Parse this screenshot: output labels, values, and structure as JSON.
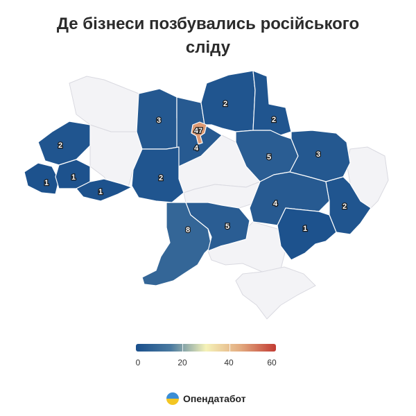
{
  "title_lines": [
    "Де бізнеси позбувались російського",
    "сліду"
  ],
  "legend": {
    "ticks": [
      "0",
      "20",
      "40",
      "60"
    ],
    "min": 0,
    "max": 60,
    "colors": [
      "#1a4f8c",
      "#4a7aa0",
      "#f5f2b8",
      "#e2a97e",
      "#c23b33"
    ]
  },
  "brand": {
    "name": "Опендатабот",
    "logo_top_color": "#3b8ed6",
    "logo_bottom_color": "#f3c623"
  },
  "colors": {
    "empty_region": "#f3f3f6",
    "label_text": "#ffffff",
    "label_outline": "#1a1a1a"
  },
  "regions": [
    {
      "id": "volyn",
      "value": 3
    },
    {
      "id": "rivne",
      "value": 4
    },
    {
      "id": "kyiv-city",
      "value": 47
    },
    {
      "id": "chernihiv",
      "value": 2
    },
    {
      "id": "sumy",
      "value": 2
    },
    {
      "id": "lviv",
      "value": 2
    },
    {
      "id": "ivano-frankivsk",
      "value": 1
    },
    {
      "id": "zakarpattia",
      "value": 1
    },
    {
      "id": "chernivtsi",
      "value": 1
    },
    {
      "id": "vinnytsia",
      "value": 2
    },
    {
      "id": "poltava",
      "value": 5
    },
    {
      "id": "kharkiv",
      "value": 3
    },
    {
      "id": "dnipropetrovsk",
      "value": 4
    },
    {
      "id": "luhansk",
      "value": 2
    },
    {
      "id": "donetsk",
      "value": 1
    },
    {
      "id": "odesa",
      "value": 8
    },
    {
      "id": "mykolaiv",
      "value": 5
    }
  ]
}
